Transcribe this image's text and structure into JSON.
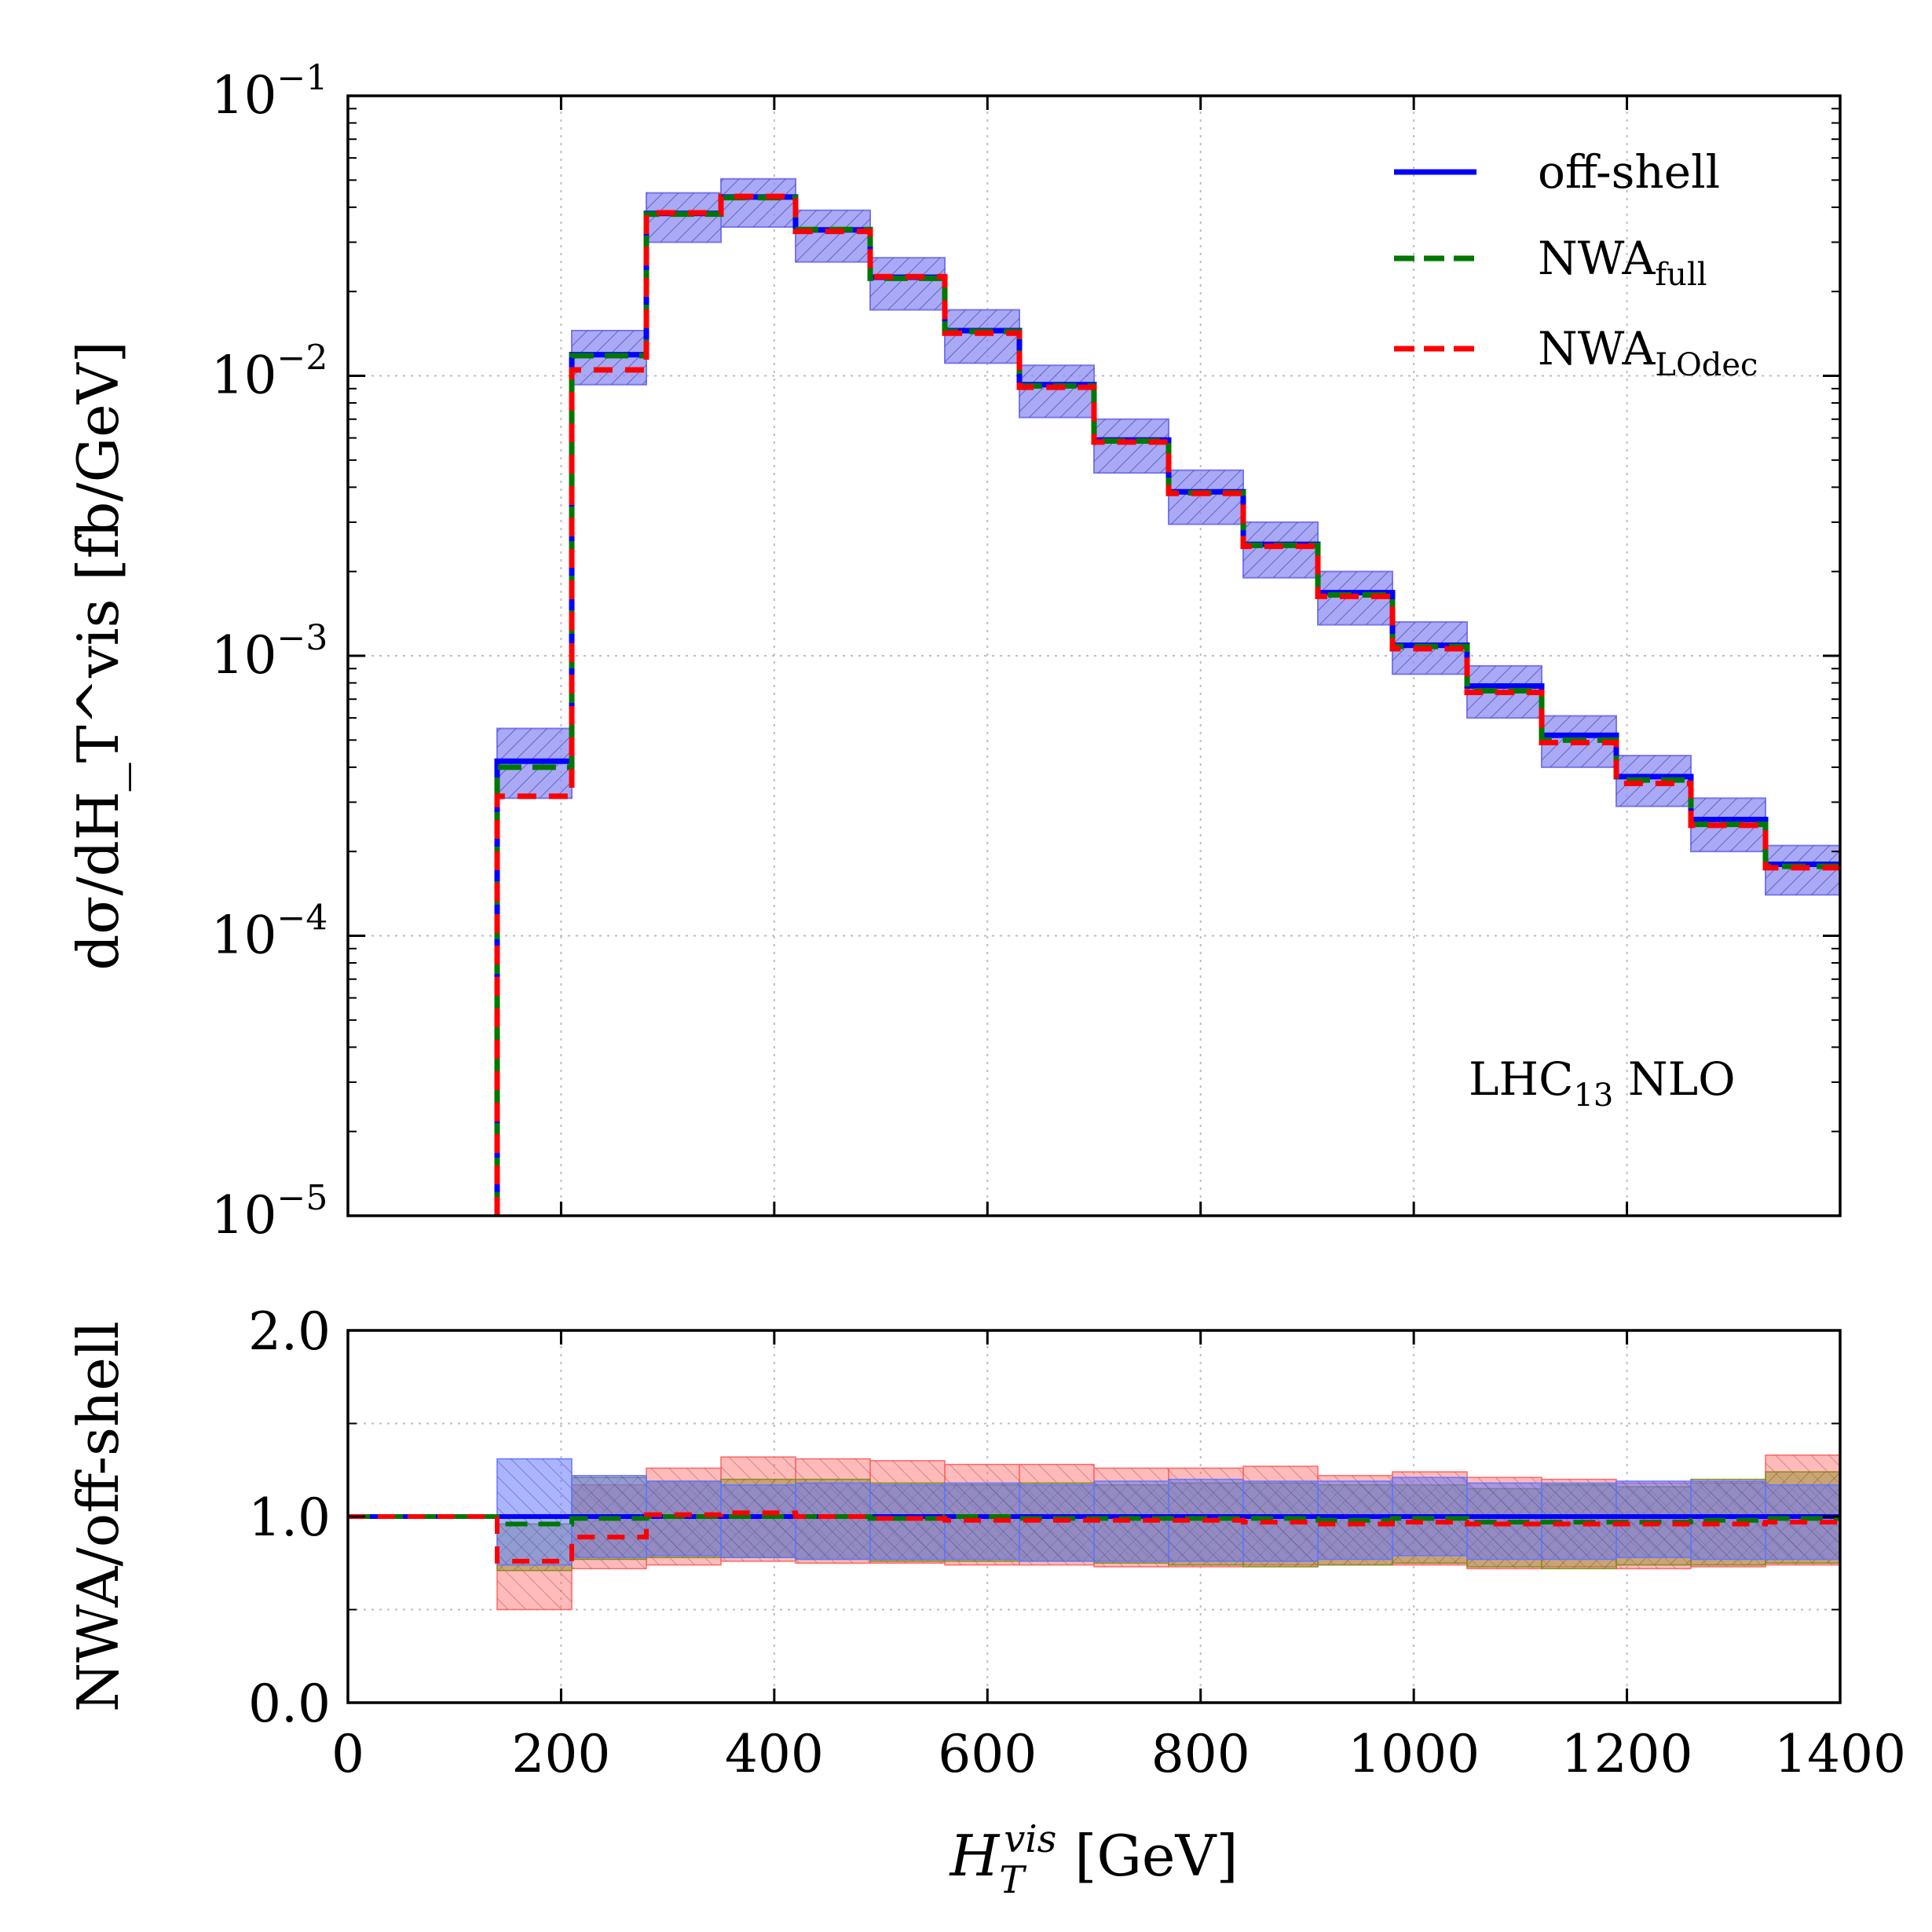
{
  "chart_data": [
    {
      "type": "histogram-step",
      "name": "main-panel",
      "yscale": "log",
      "xlim": [
        0,
        1400
      ],
      "ylim": [
        1e-05,
        0.1
      ],
      "ylabel": "dσ/dH_T^vis [fb/GeV]",
      "xticks": [
        0,
        200,
        400,
        600,
        800,
        1000,
        1200,
        1400
      ],
      "yticks": [
        {
          "value": 1e-05,
          "base": "10",
          "exp": "−5"
        },
        {
          "value": 0.0001,
          "base": "10",
          "exp": "−4"
        },
        {
          "value": 0.001,
          "base": "10",
          "exp": "−3"
        },
        {
          "value": 0.01,
          "base": "10",
          "exp": "−2"
        },
        {
          "value": 0.1,
          "base": "10",
          "exp": "−1"
        }
      ],
      "grid": true,
      "annotation": {
        "main": "LHC",
        "sub": "13",
        "rest": " NLO"
      },
      "bin_edges": [
        140,
        210,
        280,
        350,
        420,
        490,
        560,
        630,
        700,
        770,
        840,
        910,
        980,
        1050,
        1120,
        1190,
        1260,
        1330,
        1400
      ],
      "series": [
        {
          "name": "off-shell",
          "color": "#0000ff",
          "style": "solid",
          "values": [
            0.00042,
            0.0119,
            0.038,
            0.0435,
            0.0332,
            0.0225,
            0.0145,
            0.0093,
            0.0059,
            0.00385,
            0.0025,
            0.00168,
            0.00109,
            0.00078,
            0.00052,
            0.00037,
            0.00026,
            0.00018
          ],
          "band_low": [
            0.00031,
            0.0093,
            0.03,
            0.034,
            0.0255,
            0.0172,
            0.0111,
            0.0071,
            0.0045,
            0.00295,
            0.0019,
            0.00129,
            0.00086,
            0.0006,
            0.0004,
            0.00029,
            0.0002,
            0.00014
          ],
          "band_high": [
            0.00055,
            0.0145,
            0.045,
            0.0505,
            0.039,
            0.0264,
            0.0172,
            0.0109,
            0.007,
            0.0046,
            0.003,
            0.002,
            0.00132,
            0.00092,
            0.00061,
            0.00044,
            0.00031,
            0.00021
          ]
        },
        {
          "name": "NWA_full",
          "color": "#007700",
          "style": "dashed",
          "values": [
            0.0004,
            0.0118,
            0.0378,
            0.0433,
            0.0333,
            0.0223,
            0.0144,
            0.0092,
            0.00585,
            0.00382,
            0.00248,
            0.00165,
            0.00108,
            0.00075,
            0.0005,
            0.00036,
            0.00025,
            0.000177
          ]
        },
        {
          "name": "NWA_LOdec",
          "color": "#ff0000",
          "style": "dashed",
          "values": [
            0.000315,
            0.0105,
            0.0382,
            0.0437,
            0.0328,
            0.0226,
            0.0142,
            0.0091,
            0.0058,
            0.0038,
            0.00246,
            0.00163,
            0.00106,
            0.00074,
            0.00049,
            0.00035,
            0.000248,
            0.000175
          ]
        }
      ],
      "legend": {
        "position": "top-right",
        "entries": [
          {
            "main": "off-shell",
            "sub": "",
            "color": "#0000ff",
            "style": "solid"
          },
          {
            "main": "NWA",
            "sub": "full",
            "color": "#007700",
            "style": "dashed"
          },
          {
            "main": "NWA",
            "sub": "LOdec",
            "color": "#ff0000",
            "style": "dashed"
          }
        ]
      }
    },
    {
      "type": "histogram-step",
      "name": "ratio-panel",
      "yscale": "linear",
      "xlim": [
        0,
        1400
      ],
      "ylim": [
        0.0,
        2.0
      ],
      "xlabel_main": "H",
      "xlabel_sub": "T",
      "xlabel_sup": "vis",
      "xlabel_unit": " [GeV]",
      "ylabel": "NWA/off-shell",
      "xticks": [
        0,
        200,
        400,
        600,
        800,
        1000,
        1200,
        1400
      ],
      "xtick_labels": [
        "0",
        "200",
        "400",
        "600",
        "800",
        "1000",
        "1200",
        "1400"
      ],
      "yticks": [
        0.0,
        1.0,
        2.0
      ],
      "ytick_labels": [
        "0.0",
        "1.0",
        "2.0"
      ],
      "grid": true,
      "bin_edges": [
        140,
        210,
        280,
        350,
        420,
        490,
        560,
        630,
        700,
        770,
        840,
        910,
        980,
        1050,
        1120,
        1190,
        1260,
        1330,
        1400
      ],
      "series": [
        {
          "name": "off-shell",
          "color": "#0000ff",
          "style": "solid",
          "start": 0,
          "values": [
            1,
            1,
            1,
            1,
            1,
            1,
            1,
            1,
            1,
            1,
            1,
            1,
            1,
            1,
            1,
            1,
            1,
            1
          ],
          "band_low": [
            0.74,
            0.78,
            0.79,
            0.78,
            0.77,
            0.77,
            0.77,
            0.76,
            0.76,
            0.76,
            0.76,
            0.77,
            0.79,
            0.77,
            0.77,
            0.78,
            0.77,
            0.77
          ],
          "band_high": [
            1.31,
            1.22,
            1.19,
            1.17,
            1.18,
            1.17,
            1.18,
            1.17,
            1.19,
            1.2,
            1.19,
            1.19,
            1.21,
            1.18,
            1.18,
            1.19,
            1.19,
            1.17
          ],
          "band_color": "#6677ff"
        },
        {
          "name": "NWA_full",
          "color": "#007700",
          "style": "dashed",
          "start": 0,
          "values": [
            0.96,
            0.99,
            1.0,
            1.0,
            1.0,
            0.99,
            1.0,
            0.99,
            0.99,
            0.99,
            0.99,
            0.98,
            0.99,
            0.97,
            0.97,
            0.97,
            0.98,
            0.99
          ],
          "band_low": [
            0.71,
            0.77,
            0.78,
            0.78,
            0.77,
            0.76,
            0.76,
            0.76,
            0.75,
            0.74,
            0.73,
            0.74,
            0.75,
            0.73,
            0.72,
            0.74,
            0.74,
            0.75
          ],
          "band_high": [
            0.96,
            1.21,
            1.19,
            1.2,
            1.2,
            1.18,
            1.17,
            1.18,
            1.17,
            1.18,
            1.18,
            1.17,
            1.17,
            1.15,
            1.17,
            1.16,
            1.2,
            1.24
          ],
          "band_color": "#8a8a22"
        },
        {
          "name": "NWA_LOdec",
          "color": "#ff0000",
          "style": "dashed",
          "start": 0,
          "values": [
            0.76,
            0.89,
            1.01,
            1.02,
            1.0,
            0.99,
            0.98,
            0.98,
            0.98,
            0.98,
            0.97,
            0.96,
            0.97,
            0.96,
            0.96,
            0.96,
            0.96,
            0.97
          ],
          "band_low": [
            0.5,
            0.72,
            0.74,
            0.76,
            0.75,
            0.75,
            0.74,
            0.74,
            0.73,
            0.73,
            0.74,
            0.74,
            0.74,
            0.72,
            0.73,
            0.72,
            0.73,
            0.74
          ],
          "band_high": [
            0.74,
            1.17,
            1.26,
            1.32,
            1.31,
            1.3,
            1.28,
            1.28,
            1.26,
            1.26,
            1.27,
            1.22,
            1.24,
            1.21,
            1.2,
            1.18,
            1.18,
            1.33
          ],
          "band_color": "#ff6666"
        }
      ]
    }
  ]
}
